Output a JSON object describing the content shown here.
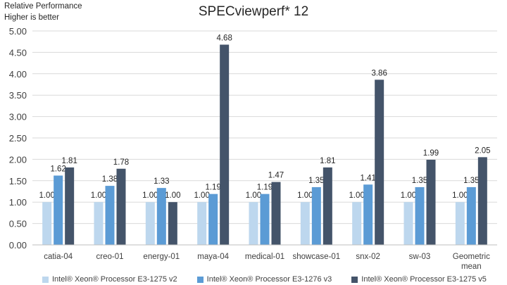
{
  "note": {
    "line1": "Relative Performance",
    "line2": "Higher is better"
  },
  "chart_data": {
    "type": "bar",
    "title": "SPECviewperf* 12",
    "xlabel": "",
    "ylabel": "",
    "ylim": [
      0,
      5
    ],
    "yticks": [
      "0.00",
      "0.50",
      "1.00",
      "1.50",
      "2.00",
      "2.50",
      "3.00",
      "3.50",
      "4.00",
      "4.50",
      "5.00"
    ],
    "grid": true,
    "legend": "bottom",
    "categories": [
      "catia-04",
      "creo-01",
      "energy-01",
      "maya-04",
      "medical-01",
      "showcase-01",
      "snx-02",
      "sw-03",
      "Geometric mean"
    ],
    "series": [
      {
        "name": "Intel® Xeon® Processor E3-1275 v2",
        "color": "#bdd7ee",
        "values": [
          1.0,
          1.0,
          1.0,
          1.0,
          1.0,
          1.0,
          1.0,
          1.0,
          1.0
        ],
        "labels": [
          "1.00",
          "1.00",
          "1.00",
          "1.00",
          "1.00",
          "1.00",
          "1.00",
          "1.00",
          "1.00"
        ]
      },
      {
        "name": "Intel® Xeon® Processor E3-1276 v3",
        "color": "#5b9bd5",
        "values": [
          1.62,
          1.38,
          1.33,
          1.19,
          1.19,
          1.35,
          1.41,
          1.35,
          1.35
        ],
        "labels": [
          "1.62",
          "1.38",
          "1.33",
          "1.19",
          "1.19",
          "1.35",
          "1.41",
          "1.35",
          "1.35"
        ]
      },
      {
        "name": "Intel® Xeon® Processor E3-1275 v5",
        "color": "#44546a",
        "values": [
          1.81,
          1.78,
          1.0,
          4.68,
          1.47,
          1.81,
          3.86,
          1.99,
          2.05
        ],
        "labels": [
          "1.81",
          "1.78",
          "1.00",
          "4.68",
          "1.47",
          "1.81",
          "3.86",
          "1.99",
          "2.05"
        ]
      }
    ]
  }
}
